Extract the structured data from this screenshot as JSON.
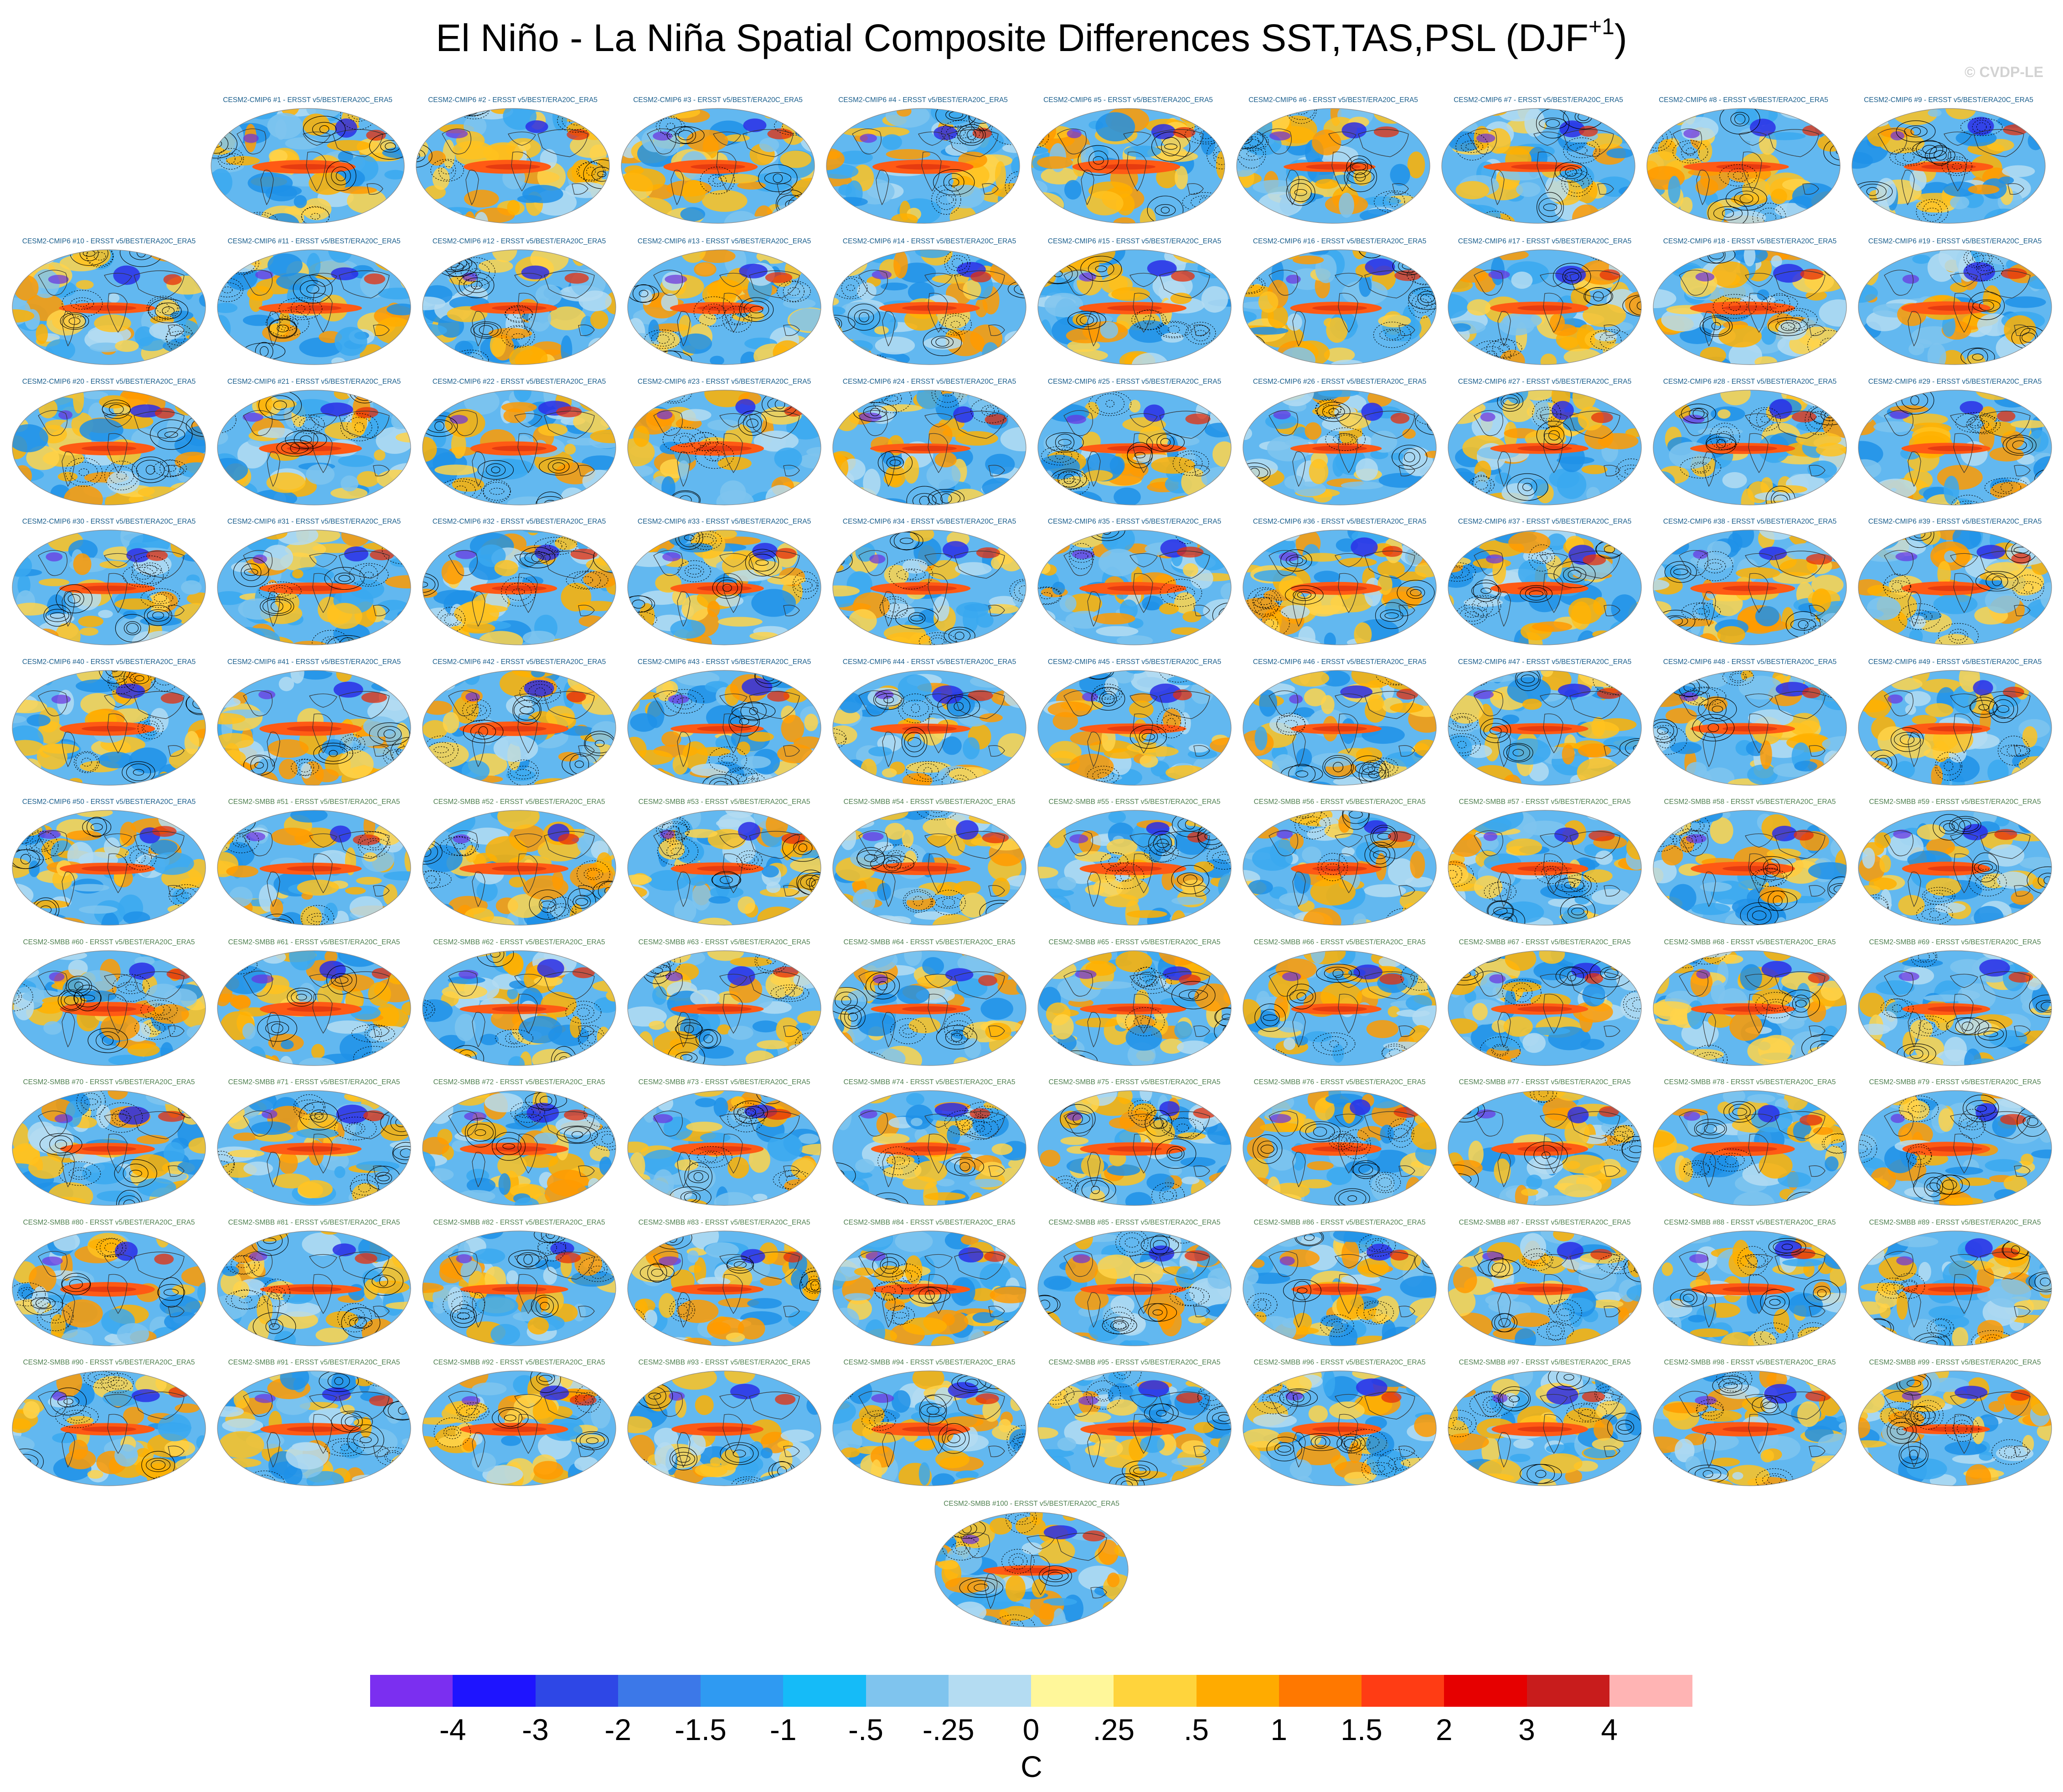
{
  "title": {
    "main": "El Niño - La Niña Spatial Composite Differences SST,TAS,PSL (DJF",
    "superscript": "+1",
    "close": ")"
  },
  "watermark": "© CVDP-LE",
  "panel_title_suffix": " - ERSST v5/BEST/ERA20C_ERA5",
  "ensembles": [
    {
      "name": "CESM2-CMIP6",
      "members": "1-50",
      "title_color": "#1a5e8c"
    },
    {
      "name": "CESM2-SMBB",
      "members": "51-100",
      "title_color": "#4f8050"
    }
  ],
  "colors": {
    "ocean_bg": "#62b8f0",
    "contour": "#000000",
    "pos_mid": "#ffb21a",
    "pos_strong": "#ff5a14",
    "neg_mid": "#1fa0f0",
    "neg_strong": "#2a2ee6"
  },
  "chart_data": {
    "type": "heatmap",
    "panel_count": 100,
    "projection": "Robinson (global)",
    "layout": "small multiples, 10 rows x 10 columns, row 1 has 9 panels, panel 100 centered below",
    "fields": [
      "SST",
      "TAS",
      "PSL"
    ],
    "season": "DJF+1",
    "composite": "El Niño - La Niña",
    "contours": "PSL differences (solid positive, dashed negative)",
    "panels": [],
    "colorbar": {
      "unit": "C",
      "tick_labels": [
        "-4",
        "-3",
        "-2",
        "-1.5",
        "-1",
        "-.5",
        "-.25",
        "0",
        ".25",
        ".5",
        "1",
        "1.5",
        "2",
        "3",
        "4"
      ],
      "colors": [
        "#7b2ff0",
        "#1e14ff",
        "#2e47e6",
        "#3c78e8",
        "#2f9af2",
        "#15bbf8",
        "#7fc4ee",
        "#b4dcf2",
        "#fff79a",
        "#ffd43c",
        "#ffab00",
        "#ff7800",
        "#ff3c14",
        "#e60000",
        "#c81c1c",
        "#ffb4b4"
      ]
    }
  }
}
